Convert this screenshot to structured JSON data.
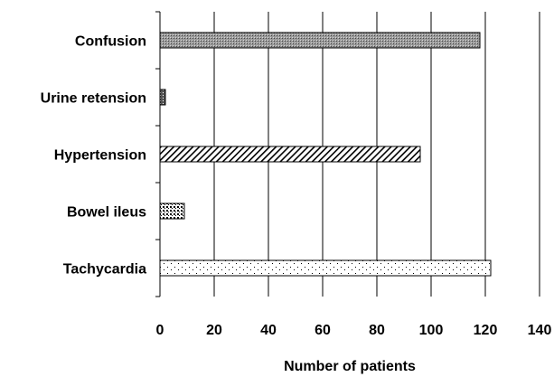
{
  "chart_data": {
    "type": "bar",
    "orientation": "horizontal",
    "categories": [
      "Confusion",
      "Urine retension",
      "Hypertension",
      "Bowel ileus",
      "Tachycardia"
    ],
    "values": [
      118,
      2,
      96,
      9,
      122
    ],
    "bar_patterns": [
      "crosshatch",
      "dark-dots",
      "diagonal-stripes",
      "checker",
      "sparse-dots"
    ],
    "xlabel": "Number of patients",
    "ylabel": "",
    "xlim": [
      0,
      140
    ],
    "xticks": [
      0,
      20,
      40,
      60,
      80,
      100,
      120,
      140
    ],
    "grid": "vertical",
    "legend": "none"
  }
}
